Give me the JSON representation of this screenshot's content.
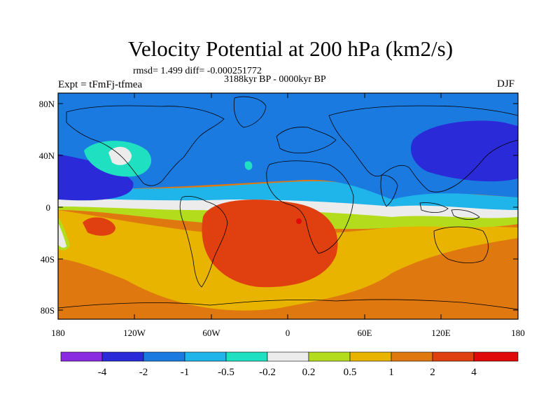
{
  "title": "Velocity Potential at 200 hPa (km2/s)",
  "stats": "rmsd= 1.499 diff= -0.000251772",
  "period": "3188kyr BP - 0000kyr BP",
  "experiment": "Expt = tFmFj-tfmea",
  "season": "DJF",
  "lat_labels": [
    "80N",
    "40N",
    "0",
    "40S",
    "80S"
  ],
  "lon_labels": [
    "180",
    "120W",
    "60W",
    "0",
    "60E",
    "120E",
    "180"
  ],
  "colorbar": {
    "labels": [
      "-4",
      "-2",
      "-1",
      "-0.5",
      "-0.2",
      "0.2",
      "0.5",
      "1",
      "2",
      "4"
    ],
    "colors": [
      "#8a2be2",
      "#2a2ad8",
      "#1b7ae0",
      "#1fb4ea",
      "#1fe0c0",
      "#ececec",
      "#b3dd1c",
      "#e8b400",
      "#e07810",
      "#e04010",
      "#e00a0a"
    ]
  },
  "palette": {
    "ocean_blue": "#1b7ae0",
    "dark_blue": "#2a2ad8",
    "light_blue": "#1fb4ea",
    "cyan": "#1fe0c0",
    "white_band": "#ececec",
    "green": "#b3dd1c",
    "yellow": "#e8b400",
    "orange": "#e07810",
    "red_orange": "#e04010"
  }
}
